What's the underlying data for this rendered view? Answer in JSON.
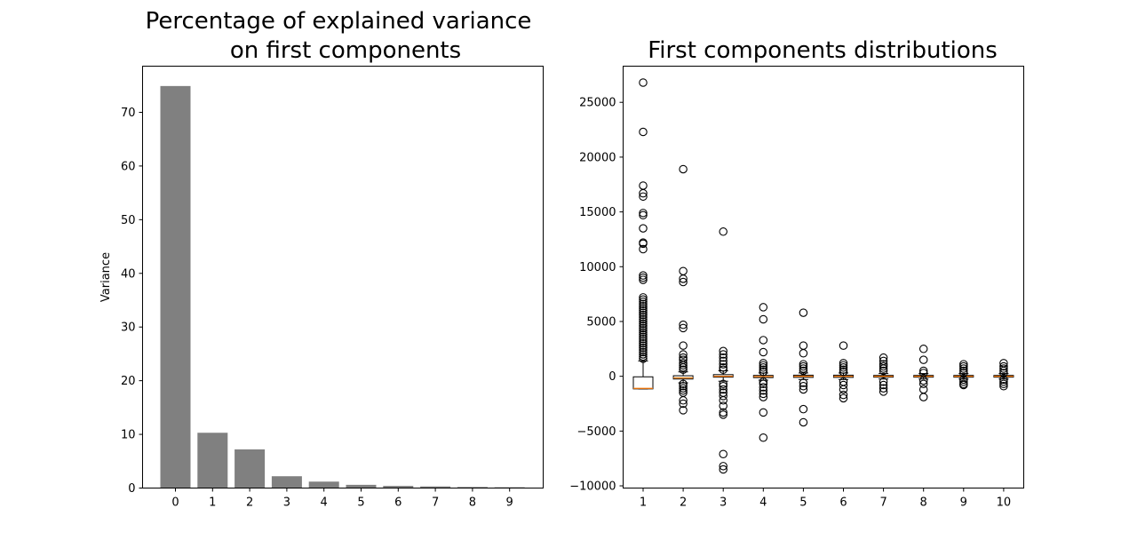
{
  "chart_data": [
    {
      "type": "bar",
      "title_lines": [
        "Percentage of explained variance",
        "on first components"
      ],
      "xlabel": "",
      "ylabel": "Variance",
      "categories": [
        "0",
        "1",
        "2",
        "3",
        "4",
        "5",
        "6",
        "7",
        "8",
        "9"
      ],
      "values": [
        74.9,
        10.3,
        7.2,
        2.2,
        1.2,
        0.6,
        0.4,
        0.3,
        0.2,
        0.15
      ],
      "ylim": [
        0,
        78.6
      ],
      "yticks": [
        0,
        10,
        20,
        30,
        40,
        50,
        60,
        70
      ],
      "bar_color": "#808080"
    },
    {
      "type": "box",
      "title": "First components distributions",
      "xlabel": "",
      "ylabel": "",
      "categories": [
        "1",
        "2",
        "3",
        "4",
        "5",
        "6",
        "7",
        "8",
        "9",
        "10"
      ],
      "ylim": [
        -10200,
        28300
      ],
      "yticks": [
        -10000,
        -5000,
        0,
        5000,
        10000,
        15000,
        20000,
        25000
      ],
      "median_color": "#ff7f0e",
      "boxes": [
        {
          "q1": -1150,
          "median": -1100,
          "q3": -50,
          "whislo": -1150,
          "whishi": 1400
        },
        {
          "q1": -250,
          "median": -150,
          "q3": 50,
          "whislo": -600,
          "whishi": 400
        },
        {
          "q1": -80,
          "median": 0,
          "q3": 150,
          "whislo": -450,
          "whishi": 500
        },
        {
          "q1": -120,
          "median": -20,
          "q3": 80,
          "whislo": -350,
          "whishi": 300
        },
        {
          "q1": -100,
          "median": 0,
          "q3": 100,
          "whislo": -300,
          "whishi": 300
        },
        {
          "q1": -100,
          "median": 0,
          "q3": 100,
          "whislo": -300,
          "whishi": 300
        },
        {
          "q1": -80,
          "median": 0,
          "q3": 80,
          "whislo": -250,
          "whishi": 250
        },
        {
          "q1": -80,
          "median": 0,
          "q3": 80,
          "whislo": -250,
          "whishi": 250
        },
        {
          "q1": -80,
          "median": 0,
          "q3": 80,
          "whislo": -250,
          "whishi": 250
        },
        {
          "q1": -80,
          "median": 0,
          "q3": 80,
          "whislo": -250,
          "whishi": 250
        }
      ],
      "fliers": [
        [
          26800,
          22300,
          17400,
          16700,
          16400,
          14900,
          14700,
          13500,
          12200,
          12100,
          11600,
          9200,
          9000,
          8800,
          7200,
          7000,
          6800,
          6600,
          6400,
          6200,
          6000,
          5800,
          5600,
          5400,
          5200,
          5000,
          4800,
          4600,
          4400,
          4200,
          4000,
          3800,
          3600,
          3400,
          3200,
          3000,
          2800,
          2600,
          2400,
          2200,
          2000,
          1800,
          1600
        ],
        [
          18900,
          9600,
          8900,
          8600,
          4700,
          4400,
          2800,
          2000,
          1700,
          1500,
          1200,
          1000,
          800,
          600,
          -700,
          -900,
          -1100,
          -1300,
          -1500,
          -2200,
          -2500,
          -3100
        ],
        [
          13200,
          2300,
          2000,
          1700,
          1400,
          1100,
          800,
          600,
          -700,
          -900,
          -1200,
          -1500,
          -1800,
          -2200,
          -2700,
          -3300,
          -3500,
          -7100,
          -8200,
          -8500
        ],
        [
          6300,
          5200,
          3300,
          2200,
          1200,
          1000,
          800,
          600,
          400,
          -500,
          -700,
          -1000,
          -1300,
          -1600,
          -1900,
          -3300,
          -5600
        ],
        [
          5800,
          2800,
          2100,
          1100,
          900,
          700,
          500,
          -600,
          -900,
          -1200,
          -3000,
          -4200
        ],
        [
          2800,
          1200,
          1000,
          800,
          600,
          400,
          -500,
          -800,
          -1200,
          -1700,
          -2000
        ],
        [
          1700,
          1400,
          1100,
          900,
          700,
          500,
          -500,
          -800,
          -1100,
          -1400
        ],
        [
          2500,
          1500,
          500,
          300,
          -400,
          -700,
          -1200,
          -1900
        ],
        [
          1100,
          900,
          700,
          500,
          300,
          -300,
          -500,
          -700,
          -800
        ],
        [
          1200,
          900,
          700,
          500,
          300,
          -300,
          -500,
          -700,
          -900
        ]
      ]
    }
  ]
}
